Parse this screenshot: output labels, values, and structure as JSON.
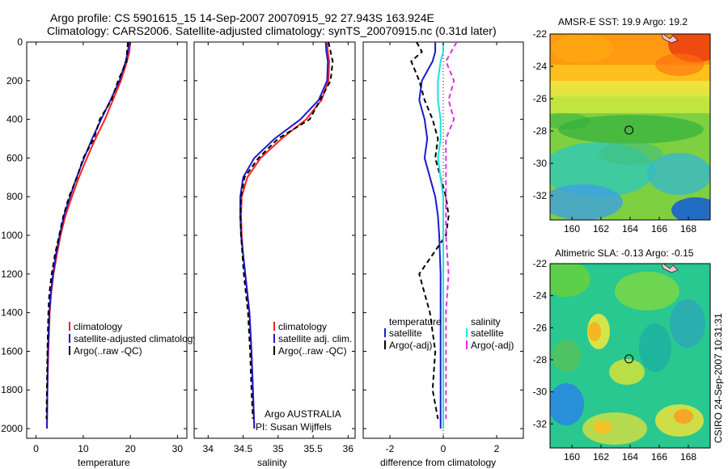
{
  "header": {
    "line1": "Argo profile: CS 5901615_15 14-Sep-2007 20070915_92 27.943S 163.924E",
    "line2": "Climatology: CARS2006. Satellite-adjusted climatology: synTS_20070915.nc (0.31d later)"
  },
  "side_label": "CSIRO 24-Sep-2007 10:31:31",
  "colors": {
    "climatology": "#ff2020",
    "satellite": "#1a1ad0",
    "argo": "#000000",
    "sal_satellite": "#22e0e0",
    "sal_argo": "#e030e0"
  },
  "chart_data": [
    {
      "type": "line",
      "xlabel": "temperature",
      "xlim": [
        -2,
        32
      ],
      "ylim": [
        0,
        2050
      ],
      "y_inverted": true,
      "xticks": [
        0,
        10,
        20,
        30
      ],
      "yticks": [
        0,
        200,
        400,
        600,
        800,
        1000,
        1200,
        1400,
        1600,
        1800,
        2000
      ],
      "legend": [
        "climatology",
        "satellite-adjusted climatology",
        "Argo(..raw -QC)"
      ],
      "series": [
        {
          "name": "climatology",
          "color": "#ff2020",
          "dash": false,
          "x": [
            20.0,
            19.8,
            19.3,
            18.0,
            16.3,
            14.6,
            12.6,
            10.8,
            9.1,
            7.6,
            6.2,
            5.2,
            4.4,
            3.7,
            3.2,
            2.9,
            2.6,
            2.4,
            2.3
          ],
          "y": [
            0,
            50,
            100,
            200,
            300,
            400,
            500,
            600,
            700,
            800,
            900,
            1000,
            1100,
            1200,
            1300,
            1400,
            1600,
            1800,
            2000
          ]
        },
        {
          "name": "satellite-adjusted climatology",
          "color": "#1a1ad0",
          "dash": false,
          "x": [
            19.7,
            19.5,
            19.0,
            17.7,
            15.8,
            13.8,
            11.9,
            10.2,
            8.6,
            7.2,
            5.9,
            5.0,
            4.2,
            3.6,
            3.1,
            2.8,
            2.5,
            2.4,
            2.3
          ],
          "y": [
            0,
            50,
            100,
            200,
            300,
            400,
            500,
            600,
            700,
            800,
            900,
            1000,
            1100,
            1200,
            1300,
            1400,
            1600,
            1800,
            2000
          ]
        },
        {
          "name": "Argo(..raw -QC)",
          "color": "#000000",
          "dash": true,
          "x": [
            19.5,
            19.3,
            19.2,
            17.4,
            16.0,
            13.5,
            12.3,
            10.0,
            8.7,
            7.0,
            5.8,
            4.9,
            4.0,
            3.3,
            2.8,
            2.6,
            2.4,
            2.3,
            2.2
          ],
          "y": [
            0,
            50,
            100,
            200,
            300,
            400,
            500,
            600,
            700,
            800,
            900,
            1000,
            1100,
            1200,
            1300,
            1400,
            1600,
            1800,
            1950
          ]
        }
      ]
    },
    {
      "type": "line",
      "xlabel": "salinity",
      "xlim": [
        33.8,
        36.1
      ],
      "ylim": [
        0,
        2050
      ],
      "y_inverted": true,
      "xticks": [
        34,
        34.5,
        35,
        35.5,
        36
      ],
      "legend": [
        "climatology",
        "satellite adj. clim.",
        "Argo(..raw -QC)"
      ],
      "annotations": [
        "Argo AUSTRALIA",
        "PI: Susan Wijffels"
      ],
      "series": [
        {
          "name": "climatology",
          "color": "#ff2020",
          "dash": false,
          "x": [
            35.7,
            35.71,
            35.73,
            35.72,
            35.62,
            35.4,
            35.05,
            34.75,
            34.56,
            34.48,
            34.47,
            34.48,
            34.5,
            34.53,
            34.56,
            34.59,
            34.62,
            34.64,
            34.66
          ],
          "y": [
            0,
            50,
            100,
            200,
            300,
            400,
            500,
            600,
            700,
            800,
            900,
            1000,
            1100,
            1200,
            1300,
            1400,
            1600,
            1800,
            2000
          ]
        },
        {
          "name": "satellite adj. clim.",
          "color": "#1a1ad0",
          "dash": false,
          "x": [
            35.68,
            35.69,
            35.71,
            35.7,
            35.58,
            35.32,
            34.95,
            34.66,
            34.5,
            34.46,
            34.46,
            34.47,
            34.5,
            34.53,
            34.56,
            34.59,
            34.62,
            34.64,
            34.66
          ],
          "y": [
            0,
            50,
            100,
            200,
            300,
            400,
            500,
            600,
            700,
            800,
            900,
            1000,
            1100,
            1200,
            1300,
            1400,
            1600,
            1800,
            2000
          ]
        },
        {
          "name": "Argo(..raw -QC)",
          "color": "#000000",
          "dash": true,
          "x": [
            35.72,
            35.75,
            35.78,
            35.75,
            35.6,
            35.45,
            35.0,
            34.72,
            34.52,
            34.47,
            34.46,
            34.47,
            34.49,
            34.51,
            34.54,
            34.57,
            34.6,
            34.62,
            34.64
          ],
          "y": [
            0,
            50,
            100,
            200,
            300,
            400,
            500,
            600,
            700,
            800,
            900,
            1000,
            1100,
            1200,
            1300,
            1400,
            1600,
            1800,
            1950
          ]
        }
      ]
    },
    {
      "type": "line",
      "xlabel": "difference from climatology",
      "xlim": [
        -3,
        3
      ],
      "ylim": [
        0,
        2050
      ],
      "y_inverted": true,
      "xticks": [
        -2,
        0,
        2
      ],
      "legend_groups": [
        {
          "title": "temperature",
          "items": [
            "satellite",
            "Argo(-adj)"
          ]
        },
        {
          "title": "salinity",
          "items": [
            "satellite",
            "Argo(-adj)"
          ]
        }
      ],
      "series": [
        {
          "name": "temperature satellite",
          "color": "#1a1ad0",
          "dash": false,
          "x": [
            -0.3,
            -0.3,
            -0.4,
            -0.8,
            -0.9,
            -0.7,
            -0.6,
            -0.7,
            -0.5,
            -0.3,
            -0.2,
            -0.15,
            -0.1,
            -0.1,
            -0.1,
            -0.1,
            -0.1
          ],
          "y": [
            0,
            50,
            100,
            200,
            300,
            400,
            500,
            600,
            700,
            800,
            900,
            1000,
            1200,
            1400,
            1600,
            1800,
            2000
          ]
        },
        {
          "name": "temperature Argo(-adj)",
          "color": "#000000",
          "dash": true,
          "x": [
            -1.0,
            -0.8,
            -1.2,
            -0.9,
            -0.7,
            -0.4,
            -0.2,
            -0.3,
            -0.1,
            0.1,
            0.2,
            0.1,
            -0.9,
            -0.5,
            -0.3,
            -0.4,
            -0.2
          ],
          "y": [
            0,
            50,
            100,
            200,
            300,
            400,
            500,
            600,
            700,
            800,
            900,
            1000,
            1200,
            1400,
            1600,
            1800,
            1950
          ]
        },
        {
          "name": "salinity satellite",
          "color": "#22e0e0",
          "dash": false,
          "x": [
            0.0,
            0.0,
            -0.1,
            -0.2,
            -0.2,
            -0.1,
            -0.1,
            -0.2,
            -0.1,
            0.0,
            0.0,
            0.0,
            0.0,
            0.0,
            0.0,
            0.0,
            0.0
          ],
          "y": [
            0,
            50,
            100,
            200,
            300,
            400,
            500,
            600,
            700,
            800,
            900,
            1000,
            1200,
            1400,
            1600,
            1800,
            2000
          ]
        },
        {
          "name": "salinity Argo(-adj)",
          "color": "#e030e0",
          "dash": true,
          "x": [
            0.5,
            0.3,
            0.1,
            0.4,
            0.2,
            0.4,
            0.1,
            0.1,
            0.1,
            0.1,
            0.1,
            0.1,
            0.2,
            0.1,
            0.1,
            0.1,
            0.1
          ],
          "y": [
            0,
            50,
            100,
            200,
            300,
            400,
            500,
            600,
            700,
            800,
            900,
            1000,
            1200,
            1400,
            1600,
            1800,
            1950
          ]
        }
      ]
    },
    {
      "type": "heatmap",
      "title": "AMSR-E SST: 19.9 Argo: 19.2",
      "xlim": [
        158.5,
        169.5
      ],
      "ylim": [
        -33.5,
        -22
      ],
      "xticks": [
        160,
        162,
        164,
        166,
        168
      ],
      "yticks": [
        -22,
        -24,
        -26,
        -28,
        -30,
        -32
      ],
      "marker": {
        "lon": 163.924,
        "lat": -27.943
      }
    },
    {
      "type": "heatmap",
      "title": "Altimetric SLA: -0.13 Argo: -0.15",
      "xlim": [
        158.5,
        169.5
      ],
      "ylim": [
        -33.5,
        -22
      ],
      "xticks": [
        160,
        162,
        164,
        166,
        168
      ],
      "yticks": [
        -22,
        -24,
        -26,
        -28,
        -30,
        -32
      ],
      "marker": {
        "lon": 163.924,
        "lat": -27.943
      }
    }
  ]
}
